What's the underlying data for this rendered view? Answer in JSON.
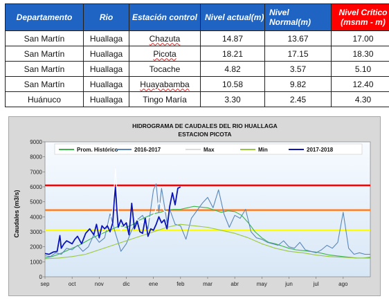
{
  "table": {
    "headers": [
      {
        "label": "Departamento",
        "critical": false,
        "multi": false
      },
      {
        "label": "Rio",
        "critical": false,
        "multi": false
      },
      {
        "label": "Estación control",
        "critical": false,
        "multi": false
      },
      {
        "label": "Nivel actual(m)",
        "critical": false,
        "multi": true
      },
      {
        "label": "Nivel Normal(m)",
        "critical": false,
        "multi": true
      },
      {
        "label": "Nivel Crítico (msnm - m)",
        "critical": true,
        "multi": true
      }
    ],
    "rows": [
      {
        "departamento": "San Martín",
        "rio": "Huallaga",
        "estacion": "Chazuta",
        "actual": "14.87",
        "normal": "13.67",
        "critico": "17.00"
      },
      {
        "departamento": "San Martín",
        "rio": "Huallaga",
        "estacion": "Picota",
        "actual": "18.21",
        "normal": "17.15",
        "critico": "18.30"
      },
      {
        "departamento": "San Martín",
        "rio": "Huallaga",
        "estacion": "Tocache",
        "actual": "4.82",
        "normal": "3.57",
        "critico": "5.10"
      },
      {
        "departamento": "San Martín",
        "rio": "Huallaga",
        "estacion": "Huayabamba",
        "actual": "10.58",
        "normal": "9.82",
        "critico": "12.40"
      },
      {
        "departamento": "Huánuco",
        "rio": "Huallaga",
        "estacion": "Tingo María",
        "actual": "3.30",
        "normal": "2.45",
        "critico": "4.30"
      }
    ]
  },
  "chart_data": {
    "type": "line",
    "title": "HIDROGRAMA DE CAUDALES DEL RIO HUALLAGA",
    "subtitle": "ESTACION  PICOTA",
    "ylabel": "Caudales  (m3/s)",
    "xlabel": "",
    "ylim": [
      0,
      9000
    ],
    "yticks": [
      0,
      1000,
      2000,
      3000,
      4000,
      5000,
      6000,
      7000,
      8000,
      9000
    ],
    "xticks": [
      "sep",
      "oct",
      "nov",
      "dic",
      "ene",
      "feb",
      "mar",
      "abr",
      "may",
      "jun",
      "jul",
      "ago"
    ],
    "xlim": [
      0,
      12
    ],
    "grid": false,
    "legend_position": "top",
    "thresholds": [
      {
        "name": "rojo",
        "value": 6100,
        "color": "#ff0000"
      },
      {
        "name": "naranja",
        "value": 4450,
        "color": "#ff7f27"
      },
      {
        "name": "amarillo",
        "value": 3100,
        "color": "#ffff00"
      }
    ],
    "series": [
      {
        "name": "Prom. Histórico",
        "color": "#3cb44b",
        "x": [
          0,
          0.25,
          0.5,
          0.75,
          1,
          1.25,
          1.5,
          1.75,
          2,
          2.25,
          2.5,
          2.75,
          3,
          3.25,
          3.5,
          3.75,
          4,
          4.25,
          4.5,
          4.75,
          5,
          5.25,
          5.5,
          5.75,
          6,
          6.25,
          6.5,
          6.75,
          7,
          7.25,
          7.5,
          7.75,
          8,
          8.25,
          8.5,
          8.75,
          9,
          9.25,
          9.5,
          9.75,
          10,
          10.25,
          10.5,
          10.75,
          11,
          11.25,
          11.5,
          11.75,
          12
        ],
        "y": [
          1250,
          1350,
          1500,
          1700,
          1900,
          2100,
          2350,
          2600,
          2800,
          3000,
          3200,
          3400,
          3300,
          3500,
          3800,
          4000,
          4200,
          4300,
          4450,
          4500,
          4500,
          4600,
          4700,
          4650,
          4600,
          4450,
          4300,
          4400,
          4350,
          4100,
          3600,
          3000,
          2600,
          2300,
          2200,
          2050,
          1900,
          1800,
          1750,
          1700,
          1650,
          1550,
          1450,
          1400,
          1350,
          1300,
          1250,
          1250,
          1300
        ]
      },
      {
        "name": "2016-2017",
        "color": "#5a86b8",
        "x": [
          0,
          0.2,
          0.4,
          0.6,
          0.8,
          1,
          1.2,
          1.4,
          1.6,
          1.8,
          2,
          2.2,
          2.4,
          2.6,
          2.8,
          3,
          3.2,
          3.4,
          3.6,
          3.8,
          4,
          4.1,
          4.2,
          4.3,
          4.4,
          4.5,
          4.6,
          4.8,
          5,
          5.2,
          5.4,
          5.6,
          5.8,
          6,
          6.2,
          6.4,
          6.6,
          6.8,
          7,
          7.2,
          7.4,
          7.6,
          7.8,
          8,
          8.2,
          8.4,
          8.6,
          8.8,
          9,
          9.2,
          9.4,
          9.6,
          9.8,
          10,
          10.2,
          10.4,
          10.6,
          10.8,
          11,
          11.2,
          11.4,
          11.6,
          11.8,
          12
        ],
        "y": [
          1400,
          1350,
          1600,
          1500,
          1900,
          1800,
          2100,
          1700,
          2000,
          2800,
          2300,
          2600,
          4200,
          2900,
          1700,
          2200,
          3100,
          3800,
          4100,
          3200,
          5800,
          6200,
          4300,
          5900,
          4800,
          3600,
          4500,
          3500,
          3400,
          2500,
          3900,
          4400,
          4900,
          5300,
          4600,
          5800,
          4200,
          3300,
          4100,
          3900,
          4500,
          3000,
          2600,
          2500,
          2300,
          2200,
          2100,
          2400,
          2000,
          1900,
          2300,
          1800,
          1700,
          1600,
          1800,
          2100,
          1900,
          2300,
          4300,
          1900,
          1500,
          1600,
          1500,
          1500
        ]
      },
      {
        "name": "Max",
        "color": "#ffffff",
        "x": [
          2,
          2.3,
          2.5,
          2.6,
          2.7,
          2.8,
          3,
          3.2,
          3.4,
          3.6,
          3.8,
          4,
          4.2,
          4.4,
          4.6
        ],
        "y": [
          2800,
          3200,
          4500,
          7200,
          4300,
          3100,
          3500,
          4300,
          3800,
          3600,
          3900,
          4100,
          5000,
          4400,
          4200
        ]
      },
      {
        "name": "Min",
        "color": "#9ac83c",
        "x": [
          0,
          0.5,
          1,
          1.5,
          2,
          2.5,
          3,
          3.5,
          4,
          4.5,
          5,
          5.5,
          6,
          6.5,
          7,
          7.5,
          8,
          8.5,
          9,
          9.5,
          10,
          10.5,
          11,
          11.5,
          12
        ],
        "y": [
          1200,
          1250,
          1350,
          1500,
          1800,
          2100,
          2400,
          2700,
          3000,
          3300,
          3500,
          3400,
          3300,
          3100,
          2900,
          2600,
          2200,
          1900,
          1700,
          1600,
          1450,
          1350,
          1300,
          1250,
          1250
        ]
      },
      {
        "name": "2017-2018",
        "color": "#0a14b8",
        "x": [
          0,
          0.15,
          0.3,
          0.45,
          0.55,
          0.6,
          0.7,
          0.8,
          0.9,
          1,
          1.1,
          1.2,
          1.35,
          1.5,
          1.65,
          1.8,
          1.9,
          2,
          2.1,
          2.2,
          2.3,
          2.4,
          2.5,
          2.55,
          2.6,
          2.65,
          2.7,
          2.8,
          2.9,
          3,
          3.1,
          3.2,
          3.3,
          3.4,
          3.5,
          3.6,
          3.7,
          3.8,
          3.9,
          4,
          4.1,
          4.2,
          4.3,
          4.4,
          4.5,
          4.6,
          4.7,
          4.8,
          4.9,
          5
        ],
        "y": [
          1550,
          1500,
          1650,
          1700,
          2750,
          1900,
          2200,
          2400,
          2300,
          2200,
          2500,
          2700,
          2200,
          2900,
          3200,
          2800,
          3500,
          2600,
          3400,
          3200,
          3400,
          3000,
          3600,
          5000,
          6000,
          4500,
          3300,
          3800,
          3400,
          3600,
          2800,
          4900,
          3200,
          3700,
          3000,
          2900,
          3900,
          2700,
          3200,
          3100,
          3500,
          4000,
          3600,
          3800,
          3200,
          4700,
          5600,
          4800,
          5900,
          6000
        ]
      }
    ]
  }
}
